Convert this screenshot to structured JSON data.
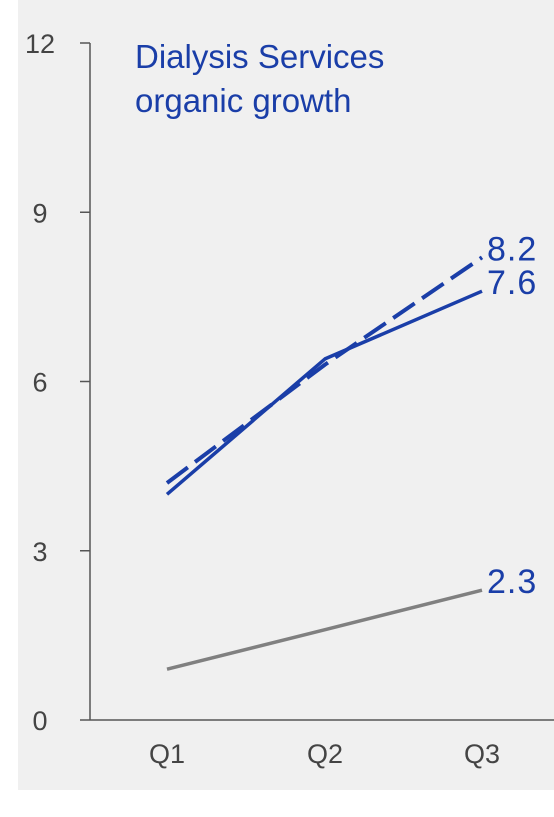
{
  "chart_data": {
    "type": "line",
    "title": [
      "Dialysis Services",
      "organic growth"
    ],
    "categories": [
      "Q1",
      "Q2",
      "Q3"
    ],
    "ylim": [
      0,
      12
    ],
    "yticks": [
      0,
      3,
      6,
      9,
      12
    ],
    "grid": false,
    "series": [
      {
        "values": [
          4.0,
          6.4,
          7.6
        ],
        "color": "#1a3ea8",
        "style": "solid",
        "end_label": "7.6"
      },
      {
        "values": [
          4.2,
          6.3,
          8.2
        ],
        "color": "#1a3ea8",
        "style": "dashed",
        "end_label": "8.2"
      },
      {
        "values": [
          0.9,
          1.6,
          2.3
        ],
        "color": "#808080",
        "style": "solid",
        "end_label": "2.3"
      }
    ],
    "end_label_color": "#1a3ea8"
  }
}
